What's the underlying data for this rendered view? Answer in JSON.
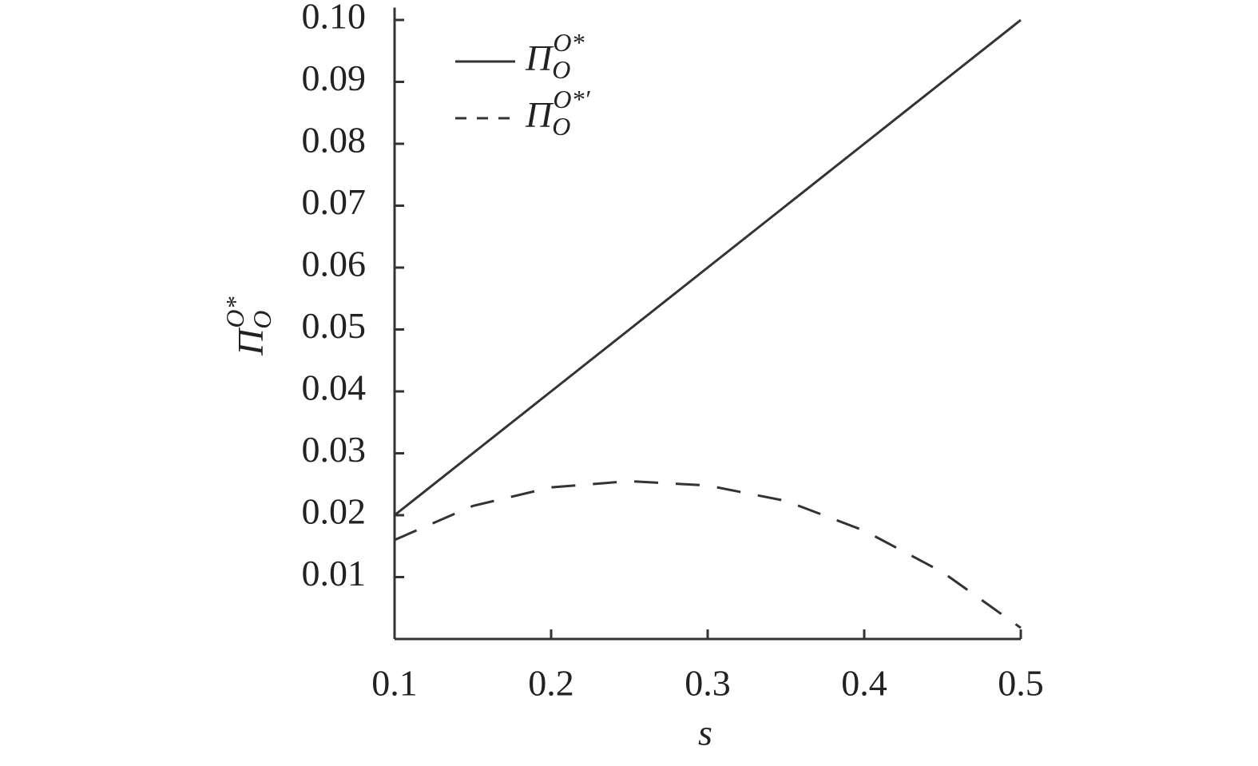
{
  "chart_data": {
    "type": "line",
    "x_label": "s",
    "y_label": {
      "base": "Π",
      "sub": "O",
      "sup": "O*"
    },
    "x": [
      0.1,
      0.15,
      0.2,
      0.25,
      0.3,
      0.35,
      0.4,
      0.45,
      0.5
    ],
    "series": [
      {
        "name": {
          "base": "Π",
          "sub": "O",
          "sup": "O*"
        },
        "color": "#333333",
        "dash": false,
        "values": [
          0.02,
          0.03,
          0.04,
          0.05,
          0.06,
          0.07,
          0.08,
          0.09,
          0.1
        ]
      },
      {
        "name": {
          "base": "Π",
          "sub": "O",
          "sup": "O*′"
        },
        "color": "#333333",
        "dash": true,
        "values": [
          0.016,
          0.0215,
          0.0245,
          0.0255,
          0.0248,
          0.0223,
          0.0175,
          0.0108,
          0.0018
        ]
      }
    ],
    "xlim": [
      0.1,
      0.5
    ],
    "ylim": [
      0,
      0.102
    ],
    "xticks": [
      0.1,
      0.2,
      0.3,
      0.4,
      0.5
    ],
    "yticks": [
      0.01,
      0.02,
      0.03,
      0.04,
      0.05,
      0.06,
      0.07,
      0.08,
      0.09,
      {
        "value": 0.1,
        "label": "0.10"
      }
    ],
    "legend": "upper-left",
    "grid": false
  }
}
